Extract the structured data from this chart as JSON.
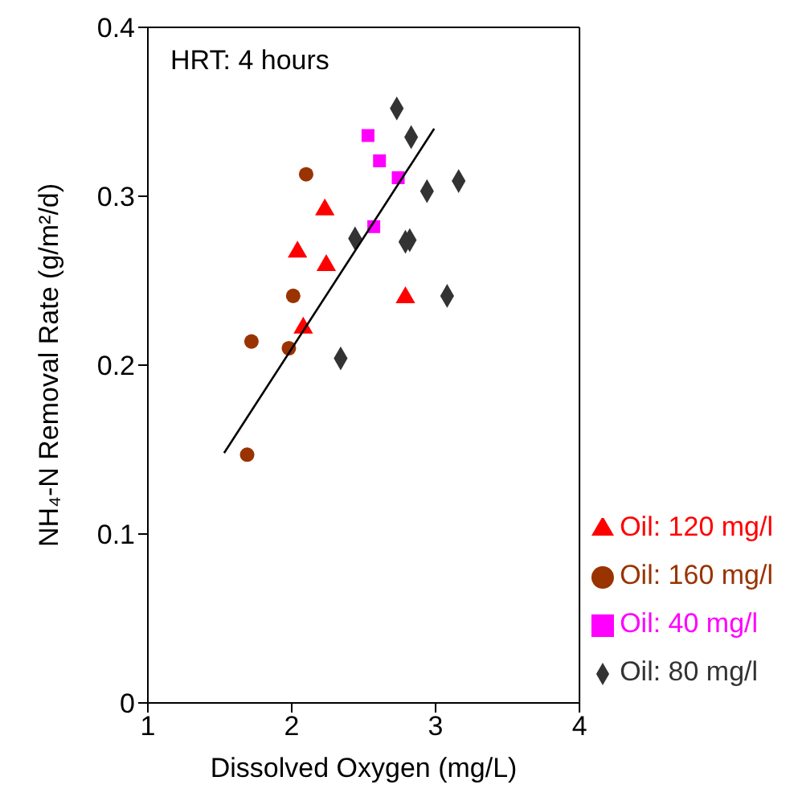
{
  "chart_data": {
    "type": "scatter",
    "xlabel": "Dissolved Oxygen (mg/L)",
    "ylabel": "NH₄-N Removal Rate (g/m²/d)",
    "annotations": [
      "HRT: 4 hours"
    ],
    "xlim": [
      1,
      4
    ],
    "xticks": [
      1,
      2,
      3,
      4
    ],
    "ylim": [
      0,
      0.4
    ],
    "yticks": [
      0,
      0.1,
      0.2,
      0.3,
      0.4
    ],
    "grid": false,
    "legend": "bottom right",
    "series": [
      {
        "name": "Oil: 40 mg/l",
        "color": "#ff00ff",
        "marker": "square",
        "x": [
          2.53,
          2.61,
          2.74,
          2.57
        ],
        "values": [
          0.336,
          0.321,
          0.311,
          0.282
        ]
      },
      {
        "name": "Oil: 80 mg/l",
        "color": "#333333",
        "marker": "diamond",
        "x": [
          2.73,
          2.83,
          2.44,
          2.94,
          3.16,
          2.79,
          2.82,
          3.08,
          2.34
        ],
        "values": [
          0.352,
          0.335,
          0.275,
          0.303,
          0.309,
          0.273,
          0.274,
          0.241,
          0.204
        ]
      },
      {
        "name": "Oil: 120 mg/l",
        "color": "#ff0000",
        "marker": "triangle",
        "x": [
          2.23,
          2.04,
          2.24,
          2.79,
          2.08
        ],
        "values": [
          0.292,
          0.267,
          0.259,
          0.24,
          0.222
        ]
      },
      {
        "name": "Oil: 160 mg/l",
        "color": "#993300",
        "marker": "circle",
        "x": [
          2.1,
          2.01,
          1.72,
          1.98,
          1.69
        ],
        "values": [
          0.313,
          0.241,
          0.214,
          0.21,
          0.147
        ]
      },
      {
        "type": "line",
        "color": "#000000",
        "marker": "none",
        "x": [
          1.53,
          2.99
        ],
        "values": [
          0.148,
          0.34
        ]
      }
    ]
  }
}
